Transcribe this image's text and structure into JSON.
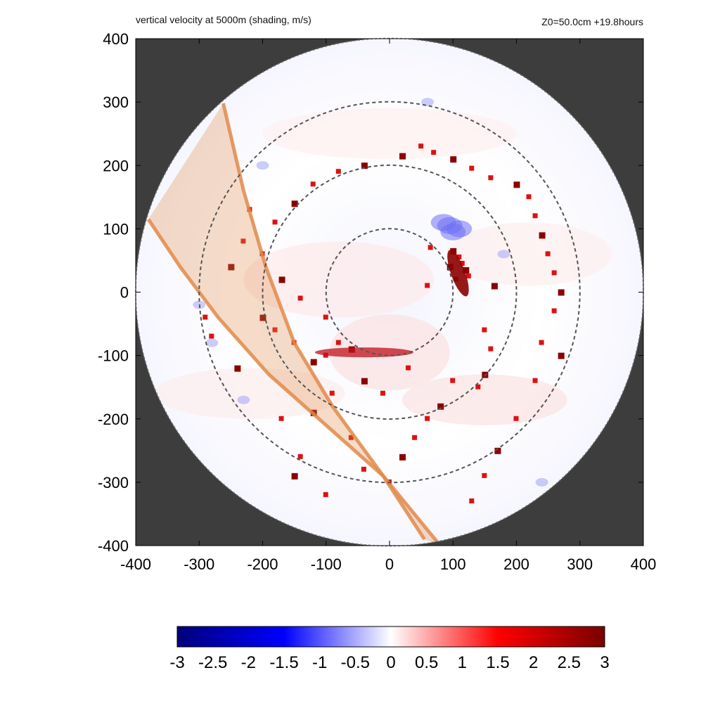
{
  "header": {
    "title": "vertical velocity at 5000m (shading, m/s)",
    "info": "Z0=50.0cm  +19.8hours"
  },
  "chart_data": {
    "type": "heatmap",
    "title": "vertical velocity at 5000m (shading, m/s)",
    "annotation": "Z0=50.0cm  +19.8hours",
    "xlim": [
      -400,
      400
    ],
    "ylim": [
      -400,
      400
    ],
    "x_ticks": [
      -400,
      -300,
      -200,
      -100,
      0,
      100,
      200,
      300,
      400
    ],
    "y_ticks": [
      -400,
      -300,
      -200,
      -100,
      0,
      100,
      200,
      300,
      400
    ],
    "x_tick_labels": [
      "-400",
      "-300",
      "-200",
      "-100",
      "0",
      "100",
      "200",
      "300",
      "400"
    ],
    "y_tick_labels": [
      "400",
      "300",
      "200",
      "100",
      "0",
      "-100",
      "-200",
      "-300",
      "-400"
    ],
    "domain_radius": 400,
    "range_rings": [
      100,
      200,
      300
    ],
    "outside_domain_color": "#3d3d3d",
    "colorbar": {
      "min": -3,
      "max": 3,
      "ticks": [
        -3,
        -2.5,
        -2,
        -1.5,
        -1,
        -0.5,
        0,
        0.5,
        1,
        1.5,
        2,
        2.5,
        3
      ],
      "tick_labels": [
        "-3",
        "-2.5",
        "-2",
        "-1.5",
        "-1",
        "-0.5",
        "0",
        "0.5",
        "1",
        "1.5",
        "2",
        "2.5",
        "3"
      ],
      "colors": [
        "#00007a",
        "#0000ff",
        "#ffffff",
        "#ff0000",
        "#7a0000"
      ]
    },
    "swath": {
      "description": "semi-transparent orange band",
      "color": "#e08a4a",
      "left_edge": [
        [
          -262,
          298
        ],
        [
          -230,
          160
        ],
        [
          -195,
          40
        ],
        [
          -150,
          -80
        ],
        [
          -90,
          -180
        ],
        [
          -10,
          -290
        ],
        [
          80,
          -400
        ]
      ],
      "right_edge": [
        [
          -380,
          115
        ],
        [
          -330,
          40
        ],
        [
          -270,
          -40
        ],
        [
          -190,
          -130
        ],
        [
          -100,
          -210
        ],
        [
          -10,
          -290
        ],
        [
          55,
          -390
        ]
      ]
    },
    "features": {
      "blue_maximum": [
        [
          95,
          105
        ],
        [
          100,
          95
        ],
        [
          110,
          100
        ],
        [
          85,
          110
        ]
      ],
      "red_cells": [
        [
          100,
          65
        ],
        [
          110,
          55
        ],
        [
          115,
          45
        ],
        [
          120,
          35
        ],
        [
          125,
          25
        ],
        [
          105,
          20
        ],
        [
          95,
          40
        ],
        [
          65,
          70
        ],
        [
          60,
          10
        ],
        [
          165,
          10
        ],
        [
          150,
          -60
        ],
        [
          160,
          -90
        ],
        [
          150,
          -130
        ],
        [
          140,
          -150
        ],
        [
          100,
          -140
        ],
        [
          80,
          -180
        ],
        [
          60,
          -200
        ],
        [
          40,
          -230
        ],
        [
          20,
          -260
        ],
        [
          0,
          -300
        ],
        [
          -40,
          -280
        ],
        [
          -60,
          -90
        ],
        [
          -80,
          -80
        ],
        [
          -100,
          -100
        ],
        [
          -120,
          -110
        ],
        [
          -150,
          -80
        ],
        [
          -180,
          -60
        ],
        [
          -200,
          -40
        ],
        [
          -220,
          130
        ],
        [
          -230,
          80
        ],
        [
          -250,
          40
        ],
        [
          -290,
          -40
        ],
        [
          -280,
          -70
        ],
        [
          -240,
          -120
        ],
        [
          -170,
          -200
        ],
        [
          -140,
          -260
        ],
        [
          -120,
          -190
        ],
        [
          -90,
          -160
        ],
        [
          -60,
          -230
        ],
        [
          20,
          215
        ],
        [
          50,
          230
        ],
        [
          70,
          220
        ],
        [
          100,
          210
        ],
        [
          130,
          195
        ],
        [
          160,
          180
        ],
        [
          200,
          170
        ],
        [
          220,
          150
        ],
        [
          230,
          120
        ],
        [
          240,
          90
        ],
        [
          250,
          60
        ],
        [
          260,
          30
        ],
        [
          270,
          0
        ],
        [
          260,
          -30
        ],
        [
          240,
          -80
        ],
        [
          270,
          -100
        ],
        [
          230,
          -140
        ],
        [
          200,
          -200
        ],
        [
          170,
          -250
        ],
        [
          150,
          -290
        ],
        [
          130,
          -330
        ],
        [
          -40,
          200
        ],
        [
          -80,
          190
        ],
        [
          -120,
          170
        ],
        [
          -150,
          140
        ],
        [
          -180,
          110
        ],
        [
          -200,
          60
        ],
        [
          -170,
          20
        ],
        [
          -140,
          -10
        ],
        [
          -100,
          -40
        ],
        [
          -40,
          -140
        ],
        [
          -10,
          -160
        ],
        [
          30,
          -120
        ],
        [
          -150,
          -290
        ],
        [
          -100,
          -320
        ]
      ]
    }
  }
}
